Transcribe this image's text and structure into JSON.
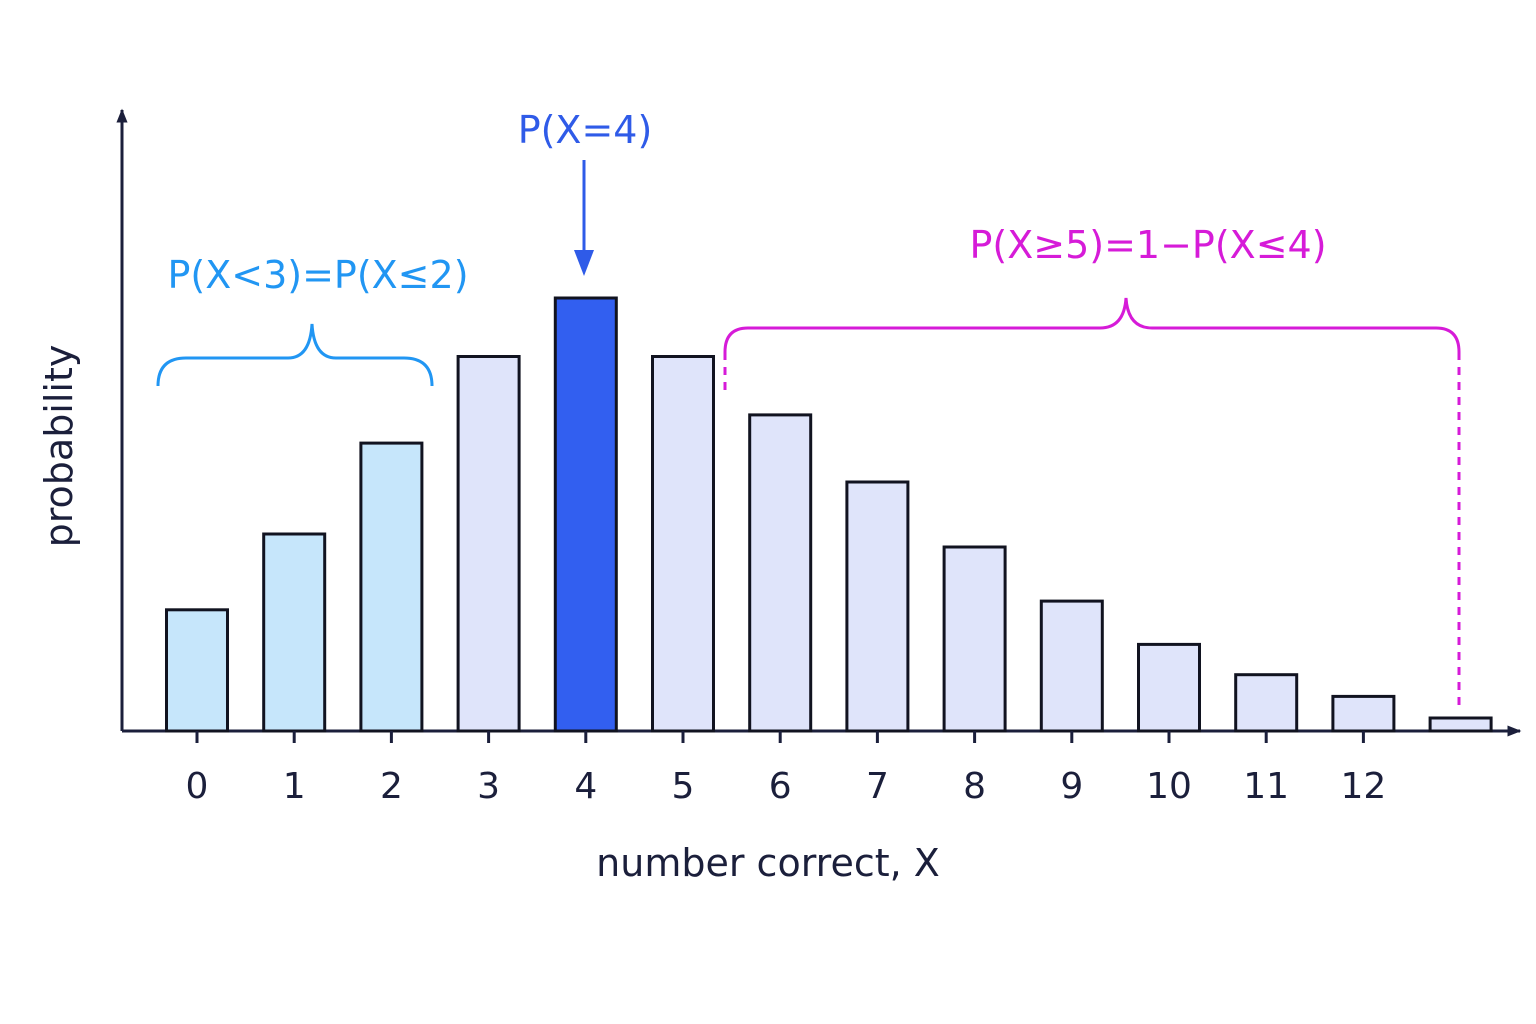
{
  "chart_data": {
    "type": "bar",
    "xlabel": "number correct, X",
    "ylabel": "probability",
    "categories": [
      "0",
      "1",
      "2",
      "3",
      "4",
      "5",
      "6",
      "7",
      "8",
      "9",
      "10",
      "11",
      "12",
      ""
    ],
    "values": [
      0.28,
      0.455,
      0.665,
      0.865,
      1.0,
      0.865,
      0.73,
      0.575,
      0.425,
      0.3,
      0.2,
      0.13,
      0.08,
      0.03
    ],
    "ylim": [
      0,
      1.4
    ],
    "grid": false,
    "bar_groups": {
      "less_than_3": [
        0,
        1,
        2
      ],
      "equal_4": [
        4
      ],
      "other": [
        3,
        5,
        6,
        7,
        8,
        9,
        10,
        11,
        12,
        13
      ]
    },
    "annotations": [
      {
        "text": "P(X<3)=P(X≤2)",
        "color": "#2196f3",
        "span": [
          0,
          2
        ]
      },
      {
        "text": "P(X=4)",
        "color": "#2f5be8",
        "target": 4
      },
      {
        "text": "P(X≥5)=1−P(X≤4)",
        "color": "#d61bd8",
        "span": [
          5,
          13
        ]
      }
    ],
    "colors": {
      "axis": "#1b1f3b",
      "bar_outline": "#111320",
      "bar_less_than_3": "#c6e6fb",
      "bar_equal_4": "#325ff0",
      "bar_other": "#dfe4fa",
      "annotation_blue": "#2196f3",
      "annotation_indigo": "#2f5be8",
      "annotation_magenta": "#d61bd8"
    }
  }
}
